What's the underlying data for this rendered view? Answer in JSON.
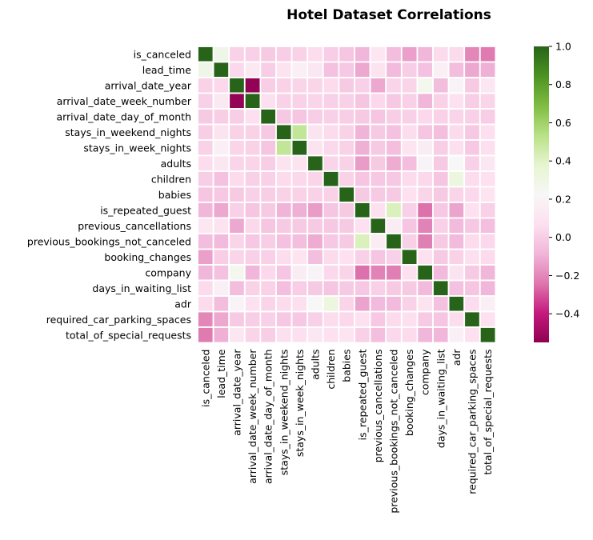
{
  "chart_data": {
    "type": "heatmap",
    "title": "Hotel Dataset Correlations",
    "xlabel": "",
    "ylabel": "",
    "variables": [
      "is_canceled",
      "lead_time",
      "arrival_date_year",
      "arrival_date_week_number",
      "arrival_date_day_of_month",
      "stays_in_weekend_nights",
      "stays_in_week_nights",
      "adults",
      "children",
      "babies",
      "is_repeated_guest",
      "previous_cancellations",
      "previous_bookings_not_canceled",
      "booking_changes",
      "company",
      "days_in_waiting_list",
      "adr",
      "required_car_parking_spaces",
      "total_of_special_requests"
    ],
    "matrix": [
      [
        1.0,
        0.29,
        0.02,
        0.01,
        -0.01,
        -0.0,
        0.02,
        0.06,
        0.0,
        -0.03,
        -0.08,
        0.11,
        -0.06,
        -0.14,
        -0.08,
        0.05,
        0.05,
        -0.2,
        -0.23
      ],
      [
        0.29,
        1.0,
        0.04,
        0.13,
        0.0,
        0.09,
        0.17,
        0.12,
        -0.04,
        -0.02,
        -0.12,
        0.09,
        -0.07,
        0.0,
        -0.04,
        0.17,
        -0.06,
        -0.12,
        -0.1
      ],
      [
        0.02,
        0.04,
        1.0,
        -0.54,
        -0.0,
        0.02,
        0.03,
        0.03,
        0.05,
        -0.01,
        0.01,
        -0.12,
        0.03,
        0.03,
        0.26,
        -0.06,
        0.2,
        -0.01,
        0.11
      ],
      [
        0.01,
        0.13,
        -0.54,
        1.0,
        0.07,
        0.02,
        0.02,
        0.03,
        0.01,
        0.01,
        -0.03,
        0.04,
        -0.02,
        0.01,
        -0.08,
        0.02,
        0.08,
        0.0,
        0.03
      ],
      [
        -0.01,
        0.0,
        -0.0,
        0.07,
        1.0,
        -0.02,
        -0.03,
        -0.0,
        0.01,
        -0.0,
        -0.01,
        -0.03,
        -0.0,
        0.01,
        0.04,
        0.02,
        0.03,
        0.01,
        0.0
      ],
      [
        -0.0,
        0.09,
        0.02,
        0.02,
        -0.02,
        1.0,
        0.5,
        0.09,
        0.05,
        0.02,
        -0.09,
        -0.01,
        -0.04,
        0.06,
        -0.03,
        -0.05,
        0.05,
        -0.02,
        0.07
      ],
      [
        0.02,
        0.17,
        0.03,
        0.02,
        -0.03,
        0.5,
        1.0,
        0.09,
        0.04,
        0.02,
        -0.1,
        -0.01,
        -0.05,
        0.1,
        0.15,
        -0.0,
        0.07,
        -0.02,
        0.07
      ],
      [
        0.06,
        0.12,
        0.03,
        0.03,
        -0.0,
        0.09,
        0.09,
        1.0,
        0.03,
        0.02,
        -0.15,
        -0.01,
        -0.11,
        -0.05,
        0.2,
        -0.01,
        0.23,
        0.01,
        0.12
      ],
      [
        0.0,
        -0.04,
        0.05,
        0.01,
        0.01,
        0.05,
        0.04,
        0.03,
        1.0,
        0.02,
        -0.03,
        -0.02,
        -0.02,
        0.05,
        0.04,
        -0.03,
        0.32,
        0.06,
        0.08
      ],
      [
        -0.03,
        -0.02,
        -0.01,
        0.01,
        -0.0,
        0.02,
        0.02,
        0.02,
        0.02,
        1.0,
        -0.01,
        -0.01,
        -0.01,
        0.08,
        0.03,
        -0.01,
        0.03,
        0.04,
        0.1
      ],
      [
        -0.08,
        -0.12,
        0.01,
        -0.03,
        -0.01,
        -0.09,
        -0.1,
        -0.15,
        -0.03,
        -0.01,
        1.0,
        0.08,
        0.42,
        0.01,
        -0.25,
        -0.02,
        -0.13,
        0.08,
        0.01
      ],
      [
        0.11,
        0.09,
        -0.12,
        0.04,
        -0.03,
        -0.01,
        -0.01,
        -0.01,
        -0.02,
        -0.01,
        0.08,
        1.0,
        0.15,
        -0.03,
        -0.21,
        0.01,
        -0.07,
        -0.02,
        -0.05
      ],
      [
        -0.06,
        -0.07,
        0.03,
        -0.02,
        -0.0,
        -0.04,
        -0.05,
        -0.11,
        -0.02,
        -0.01,
        0.42,
        0.15,
        1.0,
        0.01,
        -0.22,
        -0.01,
        -0.07,
        0.05,
        0.04
      ],
      [
        -0.14,
        0.0,
        0.03,
        0.01,
        0.01,
        0.06,
        0.1,
        -0.05,
        0.05,
        0.08,
        0.01,
        -0.03,
        0.01,
        1.0,
        0.08,
        -0.01,
        0.02,
        0.07,
        0.05
      ],
      [
        -0.08,
        -0.04,
        0.26,
        -0.08,
        0.04,
        -0.03,
        0.15,
        0.2,
        0.04,
        0.03,
        -0.25,
        -0.21,
        -0.22,
        0.08,
        1.0,
        -0.07,
        0.09,
        -0.01,
        -0.08
      ],
      [
        0.05,
        0.17,
        -0.06,
        0.02,
        0.02,
        -0.05,
        -0.0,
        -0.01,
        -0.03,
        -0.01,
        -0.02,
        0.01,
        -0.01,
        -0.01,
        -0.07,
        1.0,
        -0.04,
        -0.03,
        -0.08
      ],
      [
        0.05,
        -0.06,
        0.2,
        0.08,
        0.03,
        0.05,
        0.07,
        0.23,
        0.32,
        0.03,
        -0.13,
        -0.07,
        -0.07,
        0.02,
        0.09,
        -0.04,
        1.0,
        0.06,
        0.17
      ],
      [
        -0.2,
        -0.12,
        -0.01,
        0.0,
        0.01,
        -0.02,
        -0.02,
        0.01,
        0.06,
        0.04,
        0.08,
        -0.02,
        0.05,
        0.07,
        -0.01,
        -0.03,
        0.06,
        1.0,
        0.08
      ],
      [
        -0.23,
        -0.1,
        0.11,
        0.03,
        0.0,
        0.07,
        0.07,
        0.12,
        0.08,
        0.1,
        0.01,
        -0.05,
        0.04,
        0.05,
        -0.08,
        -0.08,
        0.17,
        0.08,
        1.0
      ]
    ],
    "colormap": "PiYG",
    "vmin": -0.55,
    "vmax": 1.0,
    "colorbar": {
      "ticks": [
        -0.4,
        -0.2,
        0.0,
        0.2,
        0.4,
        0.6,
        0.8,
        1.0
      ],
      "tick_labels": [
        "−0.4",
        "−0.2",
        "0.0",
        "0.2",
        "0.4",
        "0.6",
        "0.8",
        "1.0"
      ]
    },
    "cell_border_color": "#ffffff",
    "colors": {
      "min": "#8e0152",
      "mid": "#f7f7f7",
      "max": "#276419"
    }
  }
}
